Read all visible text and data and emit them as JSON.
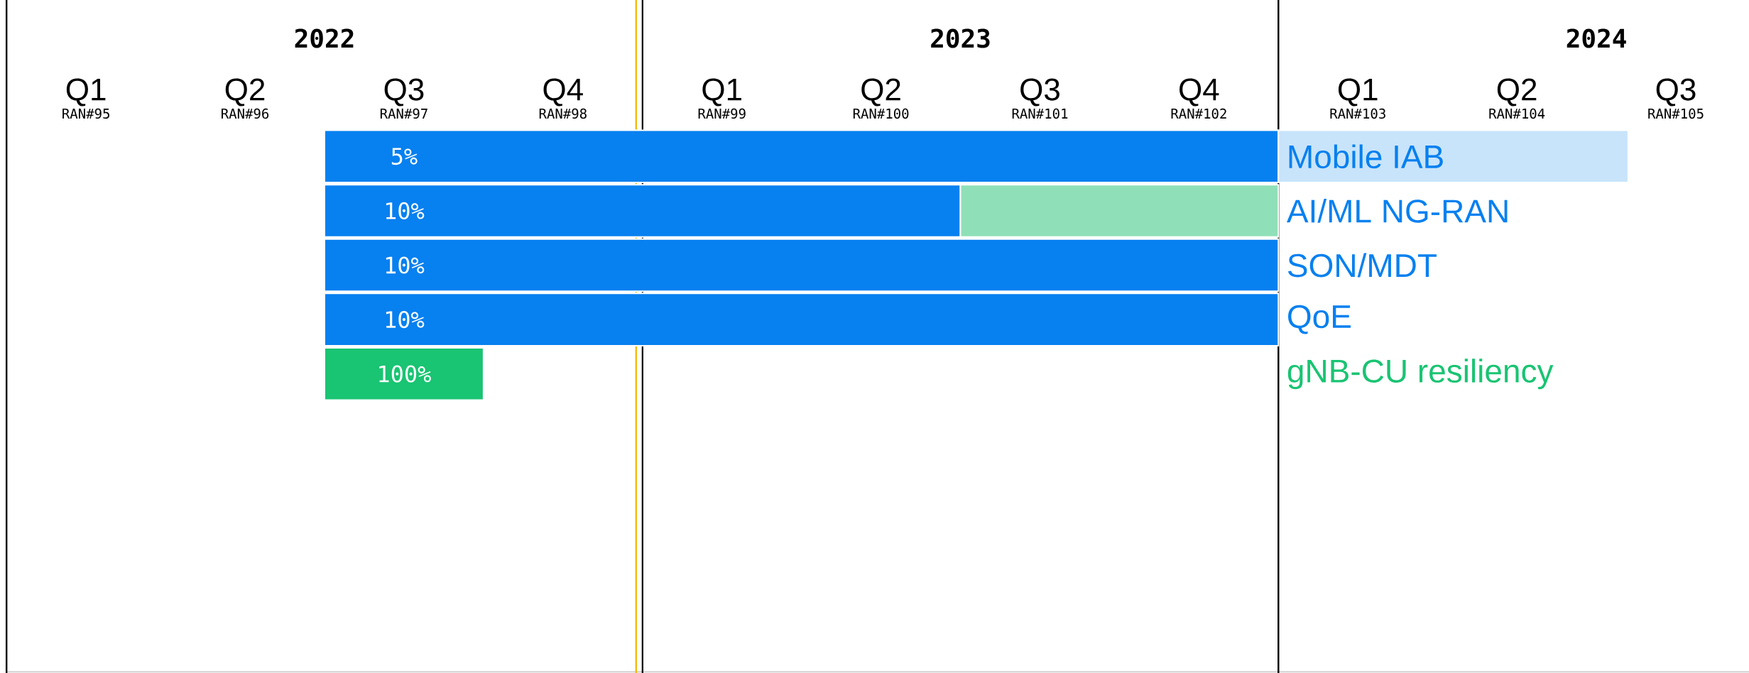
{
  "chart_data": {
    "type": "bar",
    "orientation": "horizontal",
    "categories": [
      "Mobile IAB",
      "AI/ML NG-RAN",
      "SON/MDT",
      "QoE",
      "gNB-CU resiliency",
      null,
      null,
      null,
      null,
      null
    ],
    "series": [
      {
        "color": "#0780f0",
        "base": [
          2022.5,
          2022.5,
          2022.5,
          2022.5,
          null,
          null,
          null,
          null,
          null,
          null
        ],
        "values": [
          1.5,
          1,
          1.5,
          1.5,
          null,
          null,
          null,
          null,
          null,
          null
        ]
      },
      {
        "color": "#19c472",
        "base": [
          null,
          null,
          null,
          null,
          2022.5,
          null,
          null,
          null,
          null,
          null
        ],
        "values": [
          null,
          null,
          null,
          null,
          0.25,
          null,
          null,
          null,
          null,
          null
        ]
      },
      {
        "color": "#8fe0b8",
        "base": [
          null,
          2023.5,
          null,
          null,
          null,
          null,
          null,
          null,
          null,
          null
        ],
        "values": [
          null,
          0.5,
          null,
          null,
          null,
          null,
          null,
          null,
          null,
          null
        ]
      },
      {
        "color": "#c8e4fb",
        "base": [
          2024,
          null,
          null,
          null,
          null,
          null,
          null,
          null,
          null,
          null
        ],
        "values": [
          0.55,
          null,
          null,
          null,
          null,
          null,
          null,
          null,
          null,
          null
        ]
      }
    ],
    "xlim": [
      2022,
      2024.74
    ],
    "xticks": [
      {
        "value": 2022.5,
        "label": "2022"
      },
      {
        "value": 2023.5,
        "label": "2023"
      },
      {
        "value": 2024.5,
        "label": "2024"
      }
    ],
    "annotations": [
      "Q1",
      "Q2",
      "Q3",
      "Q4",
      "Q1",
      "Q2",
      "Q3",
      "Q4",
      "Q1",
      "Q2",
      "Q3",
      "RAN#95",
      "RAN#96",
      "RAN#97",
      "RAN#98",
      "RAN#99",
      "RAN#100",
      "RAN#101",
      "RAN#102",
      "RAN#103",
      "RAN#104",
      "RAN#105",
      "5%",
      "10%",
      "10%",
      "10%",
      "100%"
    ],
    "ref_lines": [
      {
        "axis": "x",
        "value": 2022,
        "color": "#000000"
      },
      {
        "axis": "x",
        "value": 2023,
        "color": "#000000"
      },
      {
        "axis": "x",
        "value": 2024,
        "color": "#000000"
      },
      {
        "axis": "x",
        "value": 2022.99,
        "color": "#f5b80a"
      }
    ]
  }
}
